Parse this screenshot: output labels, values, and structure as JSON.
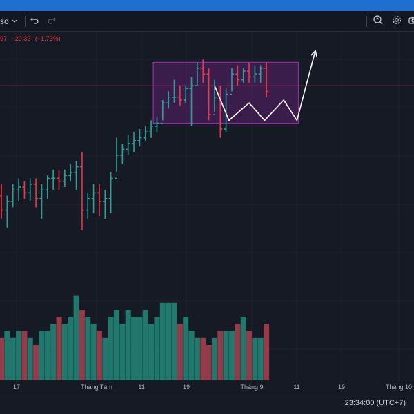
{
  "toolbar": {
    "ticker_suffix": "so",
    "chevron_icon": "chevron-down-icon",
    "undo_icon": "undo-icon",
    "redo_icon": "redo-icon",
    "zoom_icon": "zoom-icon",
    "settings_icon": "gear-icon",
    "camera_icon": "camera-icon"
  },
  "legend": {
    "close_fragment": "97",
    "change": "−29.32",
    "change_pct": "(−1.73%)"
  },
  "time_axis": {
    "labels": [
      "17",
      "Tháng Tám",
      "11",
      "19",
      "Tháng 9",
      "11",
      "19",
      "Tháng 10"
    ]
  },
  "status": {
    "clock": "23:34:00 (UTC+7)"
  },
  "colors": {
    "up": "#26a69a",
    "down": "#f23645",
    "up_volume": "#21786c",
    "down_volume": "#973a49",
    "range_box": "#9c27b0",
    "grid": "#1e2230",
    "background": "#161a25"
  },
  "chart_data": {
    "type": "ohlc",
    "note_sessions": "daily",
    "bars": [
      {
        "o": 2,
        "h": 6,
        "l": -6,
        "c": -3
      },
      {
        "o": -3,
        "h": 2,
        "l": -9,
        "c": 0
      },
      {
        "o": 0,
        "h": 6,
        "l": -2,
        "c": 4
      },
      {
        "o": 4,
        "h": 8,
        "l": 0,
        "c": 5
      },
      {
        "o": 5,
        "h": 7,
        "l": 1,
        "c": 3
      },
      {
        "o": 3,
        "h": 8,
        "l": 0,
        "c": 6
      },
      {
        "o": 6,
        "h": 8,
        "l": -2,
        "c": 1
      },
      {
        "o": 1,
        "h": 6,
        "l": -6,
        "c": 4
      },
      {
        "o": 4,
        "h": 9,
        "l": 1,
        "c": 8
      },
      {
        "o": 8,
        "h": 11,
        "l": 4,
        "c": 8
      },
      {
        "o": 8,
        "h": 11,
        "l": 4,
        "c": 7
      },
      {
        "o": 7,
        "h": 11,
        "l": 5,
        "c": 9
      },
      {
        "o": 9,
        "h": 13,
        "l": 7,
        "c": 10
      },
      {
        "o": 10,
        "h": 14,
        "l": 4,
        "c": 12
      },
      {
        "o": 12,
        "h": 17,
        "l": -10,
        "c": -3
      },
      {
        "o": -3,
        "h": 3,
        "l": -6,
        "c": 1
      },
      {
        "o": 1,
        "h": 6,
        "l": -4,
        "c": 3
      },
      {
        "o": 3,
        "h": 6,
        "l": -5,
        "c": 0
      },
      {
        "o": 0,
        "h": 4,
        "l": -6,
        "c": 1
      },
      {
        "o": 1,
        "h": 10,
        "l": -4,
        "c": 8
      },
      {
        "o": 8,
        "h": 22,
        "l": 10,
        "c": 16
      },
      {
        "o": 16,
        "h": 20,
        "l": 13,
        "c": 18
      },
      {
        "o": 18,
        "h": 23,
        "l": 16,
        "c": 20
      },
      {
        "o": 20,
        "h": 24,
        "l": 17,
        "c": 21
      },
      {
        "o": 21,
        "h": 25,
        "l": 19,
        "c": 22
      },
      {
        "o": 22,
        "h": 26,
        "l": 21,
        "c": 24
      },
      {
        "o": 24,
        "h": 28,
        "l": 22,
        "c": 26
      },
      {
        "o": 26,
        "h": 29,
        "l": 24,
        "c": 27
      },
      {
        "o": 27,
        "h": 35,
        "l": 28,
        "c": 34
      },
      {
        "o": 34,
        "h": 38,
        "l": 32,
        "c": 36
      },
      {
        "o": 36,
        "h": 42,
        "l": 34,
        "c": 36
      },
      {
        "o": 36,
        "h": 40,
        "l": 33,
        "c": 35
      },
      {
        "o": 35,
        "h": 40,
        "l": 34,
        "c": 39
      },
      {
        "o": 39,
        "h": 43,
        "l": 26,
        "c": 40
      },
      {
        "o": 40,
        "h": 48,
        "l": 40,
        "c": 46
      },
      {
        "o": 46,
        "h": 49,
        "l": 41,
        "c": 44
      },
      {
        "o": 44,
        "h": 46,
        "l": 28,
        "c": 30
      },
      {
        "o": 30,
        "h": 42,
        "l": 31,
        "c": 36
      },
      {
        "o": 36,
        "h": 40,
        "l": 22,
        "c": 25
      },
      {
        "o": 25,
        "h": 39,
        "l": 24,
        "c": 37
      },
      {
        "o": 37,
        "h": 46,
        "l": 38,
        "c": 44
      },
      {
        "o": 44,
        "h": 47,
        "l": 40,
        "c": 42
      },
      {
        "o": 42,
        "h": 46,
        "l": 41,
        "c": 45
      },
      {
        "o": 45,
        "h": 48,
        "l": 41,
        "c": 43
      },
      {
        "o": 43,
        "h": 47,
        "l": 41,
        "c": 44
      },
      {
        "o": 44,
        "h": 47,
        "l": 41,
        "c": 46
      },
      {
        "o": 46,
        "h": 48,
        "l": 36,
        "c": 38
      }
    ],
    "volume": [
      6,
      7,
      6,
      7,
      7,
      6,
      5,
      7,
      7,
      8,
      9,
      8,
      9,
      12,
      10,
      9,
      8,
      7,
      6,
      9,
      10,
      8,
      10,
      9,
      9,
      10,
      8,
      9,
      11,
      11,
      11,
      8,
      9,
      7,
      6,
      6,
      5,
      6,
      7,
      7,
      7,
      8,
      9,
      7,
      6,
      6,
      8
    ],
    "price_line_value": 40,
    "range_box": {
      "x_from": 26,
      "x_to": 50,
      "y_low": 27,
      "y_high": 48
    },
    "projection_path": [
      {
        "x": 37,
        "y": 40
      },
      {
        "x": 39.5,
        "y": 28
      },
      {
        "x": 43,
        "y": 34
      },
      {
        "x": 45.7,
        "y": 28
      },
      {
        "x": 49,
        "y": 35
      },
      {
        "x": 51.3,
        "y": 28
      },
      {
        "x": 54.5,
        "y": 52
      }
    ],
    "grid": true
  }
}
